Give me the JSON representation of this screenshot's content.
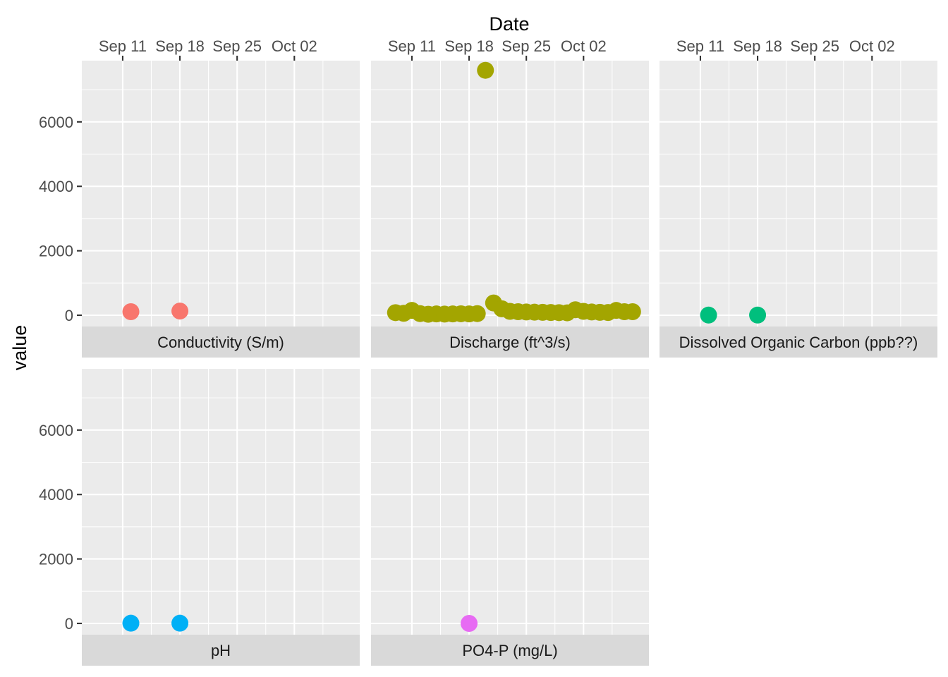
{
  "chart_data": {
    "type": "scatter",
    "layout": "facet_wrap",
    "xlabel": "Date",
    "ylabel": "value",
    "x_axis_position": "top",
    "y_axis_position": "left",
    "xlim": [
      "2017-09-06",
      "2017-10-10"
    ],
    "ylim": [
      -350,
      7900
    ],
    "x_ticks": [
      {
        "date": "2017-09-11",
        "label": "Sep 11"
      },
      {
        "date": "2017-09-18",
        "label": "Sep 18"
      },
      {
        "date": "2017-09-25",
        "label": "Sep 25"
      },
      {
        "date": "2017-10-02",
        "label": "Oct 02"
      }
    ],
    "y_ticks": [
      0,
      2000,
      4000,
      6000
    ],
    "grid": true,
    "legend": "none",
    "panels": [
      {
        "name": "Conductivity (S/m)",
        "color": "#F8766D",
        "points": [
          {
            "x": "2017-09-12",
            "y": 110
          },
          {
            "x": "2017-09-18",
            "y": 130
          }
        ]
      },
      {
        "name": "Discharge (ft^3/s)",
        "color": "#A3A500",
        "points": [
          {
            "x": "2017-09-09",
            "y": 80
          },
          {
            "x": "2017-09-10",
            "y": 60
          },
          {
            "x": "2017-09-11",
            "y": 150
          },
          {
            "x": "2017-09-12",
            "y": 50
          },
          {
            "x": "2017-09-13",
            "y": 30
          },
          {
            "x": "2017-09-14",
            "y": 40
          },
          {
            "x": "2017-09-15",
            "y": 35
          },
          {
            "x": "2017-09-16",
            "y": 40
          },
          {
            "x": "2017-09-17",
            "y": 45
          },
          {
            "x": "2017-09-18",
            "y": 40
          },
          {
            "x": "2017-09-19",
            "y": 50
          },
          {
            "x": "2017-09-20",
            "y": 7600
          },
          {
            "x": "2017-09-21",
            "y": 380
          },
          {
            "x": "2017-09-22",
            "y": 200
          },
          {
            "x": "2017-09-23",
            "y": 120
          },
          {
            "x": "2017-09-24",
            "y": 110
          },
          {
            "x": "2017-09-25",
            "y": 100
          },
          {
            "x": "2017-09-26",
            "y": 95
          },
          {
            "x": "2017-09-27",
            "y": 90
          },
          {
            "x": "2017-09-28",
            "y": 85
          },
          {
            "x": "2017-09-29",
            "y": 80
          },
          {
            "x": "2017-09-30",
            "y": 75
          },
          {
            "x": "2017-10-01",
            "y": 170
          },
          {
            "x": "2017-10-02",
            "y": 120
          },
          {
            "x": "2017-10-03",
            "y": 100
          },
          {
            "x": "2017-10-04",
            "y": 90
          },
          {
            "x": "2017-10-05",
            "y": 85
          },
          {
            "x": "2017-10-06",
            "y": 150
          },
          {
            "x": "2017-10-07",
            "y": 110
          },
          {
            "x": "2017-10-08",
            "y": 110
          }
        ]
      },
      {
        "name": "Dissolved Organic Carbon (ppb??)",
        "color": "#00BF7D",
        "points": [
          {
            "x": "2017-09-12",
            "y": 5
          },
          {
            "x": "2017-09-18",
            "y": 5
          }
        ]
      },
      {
        "name": "pH",
        "color": "#00B0F6",
        "points": [
          {
            "x": "2017-09-12",
            "y": 7
          },
          {
            "x": "2017-09-18",
            "y": 7
          }
        ]
      },
      {
        "name": "PO4-P (mg/L)",
        "color": "#E76BF3",
        "points": [
          {
            "x": "2017-09-18",
            "y": 0.02
          }
        ]
      }
    ]
  }
}
